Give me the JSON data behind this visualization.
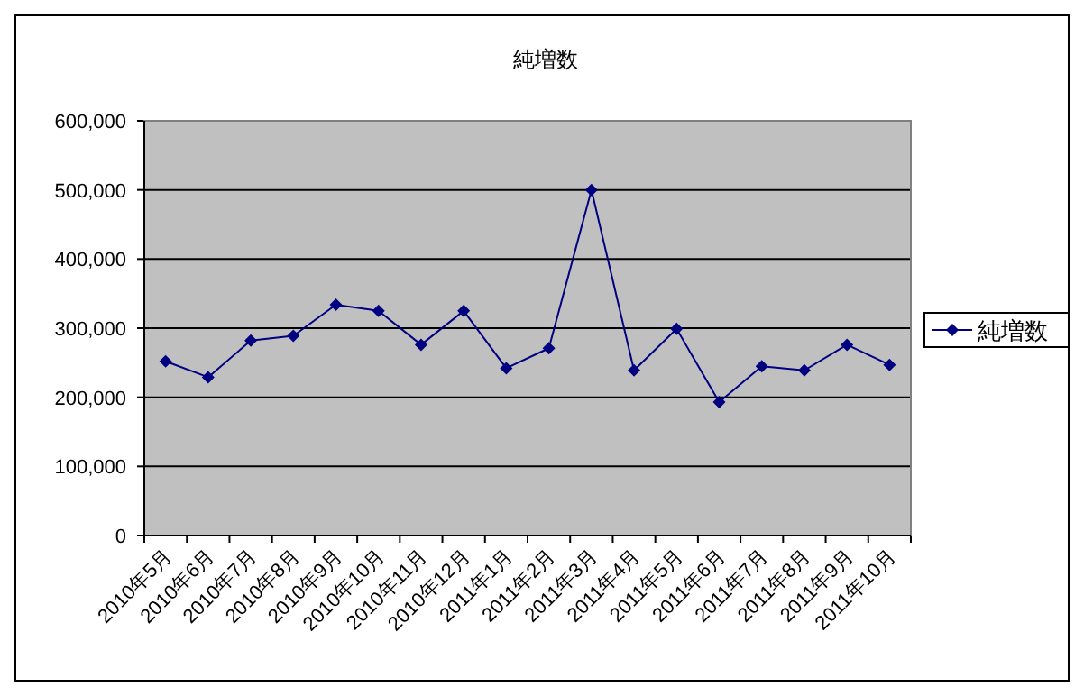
{
  "chart_data": {
    "type": "line",
    "title": "純増数",
    "categories": [
      "2010年5月",
      "2010年6月",
      "2010年7月",
      "2010年8月",
      "2010年9月",
      "2010年10月",
      "2010年11月",
      "2010年12月",
      "2011年1月",
      "2011年2月",
      "2011年3月",
      "2011年4月",
      "2011年5月",
      "2011年6月",
      "2011年7月",
      "2011年8月",
      "2011年9月",
      "2011年10月"
    ],
    "series": [
      {
        "name": "純増数",
        "color": "#000080",
        "values": [
          252000,
          229000,
          282000,
          289000,
          334000,
          325000,
          276000,
          325000,
          242000,
          271000,
          500000,
          239000,
          299000,
          193000,
          245000,
          239000,
          276000,
          247000
        ]
      }
    ],
    "ylim": [
      0,
      600000
    ],
    "yticks": [
      {
        "value": 0,
        "label": "0"
      },
      {
        "value": 100000,
        "label": "100,000"
      },
      {
        "value": 200000,
        "label": "200,000"
      },
      {
        "value": 300000,
        "label": "300,000"
      },
      {
        "value": 400000,
        "label": "400,000"
      },
      {
        "value": 500000,
        "label": "500,000"
      },
      {
        "value": 600000,
        "label": "600,000"
      }
    ],
    "grid": "y",
    "legend": "right",
    "marker": "diamond",
    "line_style": "solid"
  }
}
